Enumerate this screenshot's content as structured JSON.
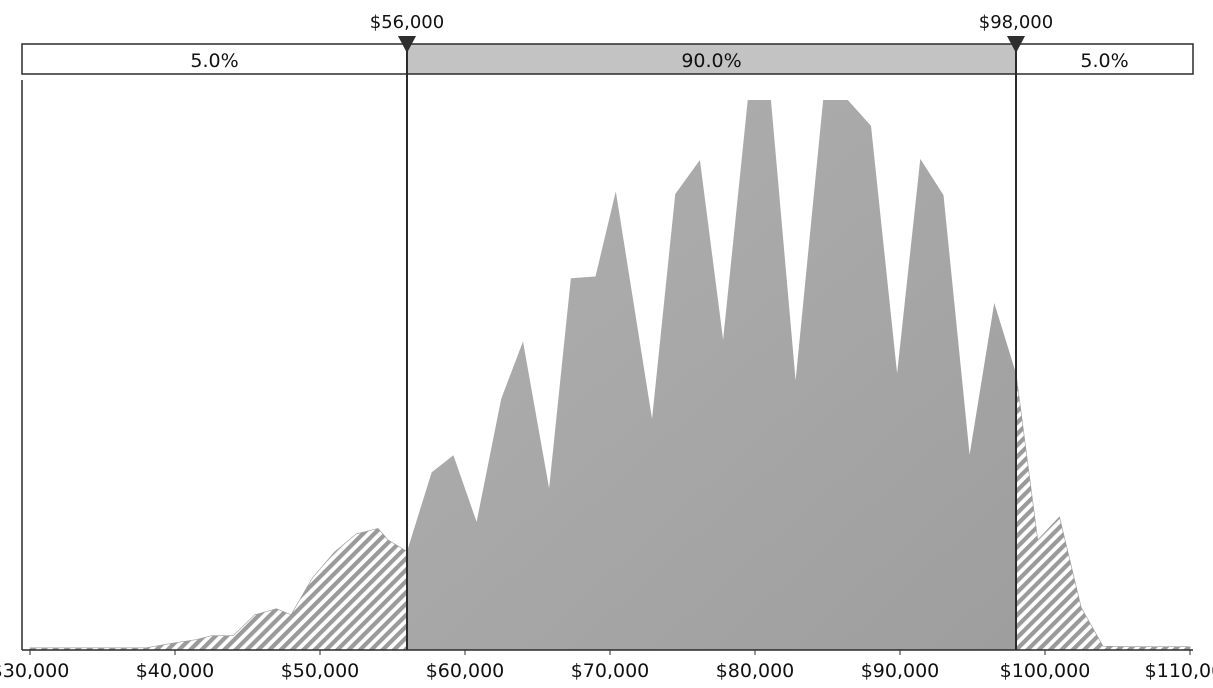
{
  "chart_data": {
    "type": "area",
    "title": "",
    "xlabel": "",
    "ylabel": "",
    "xlim": [
      30000,
      110000
    ],
    "ylim": [
      0,
      1
    ],
    "grid": false,
    "x_tick_values": [
      30000,
      40000,
      50000,
      60000,
      70000,
      80000,
      90000,
      100000,
      110000
    ],
    "x_tick_labels": [
      "$30,000",
      "$40,000",
      "$50,000",
      "$60,000",
      "$70,000",
      "$80,000",
      "$90,000",
      "$100,000",
      "$110,000"
    ],
    "delimiters": [
      {
        "value": 56000,
        "label": "$56,000"
      },
      {
        "value": 98000,
        "label": "$98,000"
      }
    ],
    "bands": [
      {
        "label": "5.0%",
        "shaded": false
      },
      {
        "label": "90.0%",
        "shaded": true
      },
      {
        "label": "5.0%",
        "shaded": false
      }
    ],
    "colors": {
      "middle_fill": "#a9a9a9",
      "tail_hatch": "#9a9a9a",
      "band_shaded": "#c3c3c3",
      "line": "#2b2b2b"
    },
    "distribution": {
      "x": [
        30000,
        38000,
        40000,
        41500,
        42500,
        44000,
        45500,
        47000,
        48000,
        49500,
        51000,
        52500,
        54000,
        54700,
        56000,
        57700,
        59200,
        60800,
        62500,
        64000,
        65800,
        67300,
        69000,
        70400,
        72900,
        74500,
        76200,
        77800,
        79500,
        81100,
        82800,
        84700,
        86400,
        88000,
        89800,
        91400,
        93000,
        94800,
        96500,
        98000,
        99500,
        101000,
        102500,
        104000,
        105800,
        110000
      ],
      "y": [
        0.004,
        0.004,
        0.013,
        0.019,
        0.026,
        0.026,
        0.064,
        0.075,
        0.064,
        0.132,
        0.178,
        0.211,
        0.221,
        0.2,
        0.179,
        0.323,
        0.354,
        0.233,
        0.457,
        0.561,
        0.294,
        0.676,
        0.679,
        0.834,
        0.42,
        0.829,
        0.891,
        0.564,
        1.0,
        1.0,
        0.49,
        1.0,
        1.0,
        0.953,
        0.503,
        0.893,
        0.827,
        0.355,
        0.631,
        0.503,
        0.2,
        0.242,
        0.077,
        0.007,
        0.006,
        0.006
      ]
    }
  }
}
